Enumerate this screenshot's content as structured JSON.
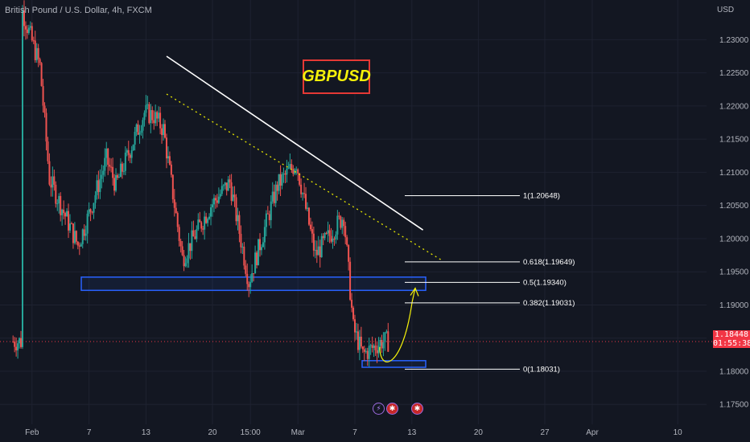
{
  "header": {
    "symbol_title": "British Pound / U.S. Dollar, 4h, FXCM",
    "currency": "USD"
  },
  "annotation_title": "GBPUSD",
  "price_badge": {
    "price": "1.18448",
    "countdown": "01:55:38"
  },
  "events": {
    "e1_glyph": "⚡",
    "e2_glyph": "✱",
    "e3_glyph": "✱"
  },
  "colors": {
    "background": "#131722",
    "up": "#26a69a",
    "down": "#ef5350",
    "zone": "#2962ff",
    "title_border": "#e53935",
    "title_text": "#f5f10a",
    "arrow": "#f5f10a",
    "trend": "#ffffff"
  },
  "chart_data": {
    "type": "candlestick",
    "timeframe": "4h",
    "y_axis": {
      "ylim": [
        1.172,
        1.2355
      ],
      "ticks": [
        "1.23000",
        "1.22500",
        "1.22000",
        "1.21500",
        "1.21000",
        "1.20500",
        "1.20000",
        "1.19500",
        "1.19000",
        "1.18500",
        "1.18000",
        "1.17500"
      ]
    },
    "x_axis": {
      "tick_labels": [
        "Feb",
        "7",
        "13",
        "20",
        "15:00",
        "Mar",
        "7",
        "13",
        "20",
        "27",
        "Apr",
        "10"
      ]
    },
    "current_price": 1.18448,
    "ohlc_anchors": [
      {
        "t": "Jan 31",
        "p": 1.235
      },
      {
        "t": "Feb 2",
        "p": 1.226
      },
      {
        "t": "Feb 3",
        "p": 1.209
      },
      {
        "t": "Feb 6",
        "p": 1.199
      },
      {
        "t": "Feb 7",
        "p": 1.203
      },
      {
        "t": "Feb 9",
        "p": 1.212
      },
      {
        "t": "Feb 10",
        "p": 1.208
      },
      {
        "t": "Feb 13",
        "p": 1.219
      },
      {
        "t": "Feb 14",
        "p": 1.2185
      },
      {
        "t": "Feb 15",
        "p": 1.2165
      },
      {
        "t": "Feb 17",
        "p": 1.197
      },
      {
        "t": "Feb 20",
        "p": 1.205
      },
      {
        "t": "Feb 22",
        "p": 1.2085
      },
      {
        "t": "Feb 24",
        "p": 1.1935
      },
      {
        "t": "Feb 27",
        "p": 1.208
      },
      {
        "t": "Mar 1",
        "p": 1.2115
      },
      {
        "t": "Mar 3",
        "p": 1.1975
      },
      {
        "t": "Mar 6",
        "p": 1.2035
      },
      {
        "t": "Mar 7",
        "p": 1.1865
      },
      {
        "t": "Mar 8",
        "p": 1.1825
      },
      {
        "t": "Mar 10",
        "p": 1.1845
      }
    ],
    "support_zone": {
      "low": 1.1922,
      "high": 1.1942
    },
    "target_zone": {
      "low": 1.1806,
      "high": 1.1816
    },
    "trendline": {
      "from": {
        "t": "Feb 15",
        "p": 1.2275
      },
      "to": {
        "t": "Mar 14",
        "p": 1.2013
      }
    },
    "dotted_line": {
      "from": {
        "t": "Feb 15",
        "p": 1.2218
      },
      "to": {
        "t": "Mar 16",
        "p": 1.1968
      }
    },
    "fibonacci": [
      {
        "level": "1",
        "price": 1.20648,
        "label": "1(1.20648)"
      },
      {
        "level": "0.618",
        "price": 1.19649,
        "label": "0.618(1.19649)"
      },
      {
        "level": "0.5",
        "price": 1.1934,
        "label": "0.5(1.19340)"
      },
      {
        "level": "0.382",
        "price": 1.19031,
        "label": "0.382(1.19031)"
      },
      {
        "level": "0",
        "price": 1.18031,
        "label": "0(1.18031)"
      }
    ],
    "projection": {
      "from": 1.1827,
      "to": 1.1929
    }
  }
}
